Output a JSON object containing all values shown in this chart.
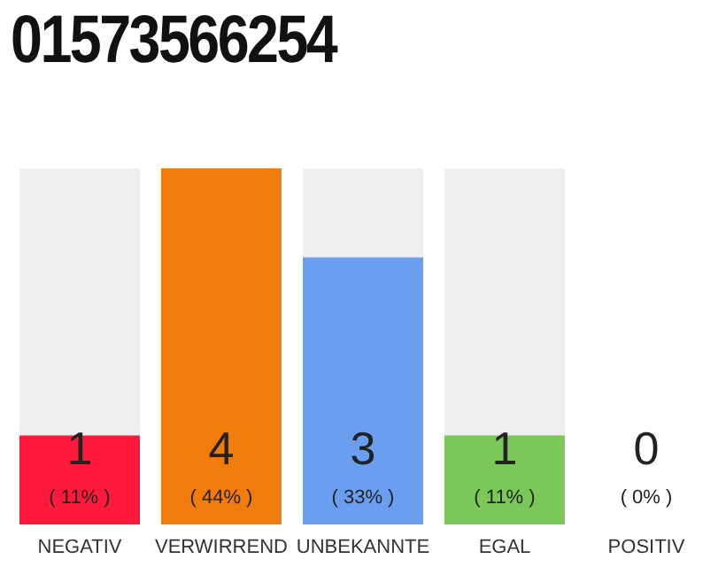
{
  "chart_data": {
    "type": "bar",
    "title": "01573566254",
    "categories": [
      "NEGATIV",
      "VERWIRREND",
      "UNBEKANNTE",
      "EGAL",
      "POSITIV"
    ],
    "values": [
      1,
      4,
      3,
      1,
      0
    ],
    "colors": [
      "#ff1a3c",
      "#f07c0b",
      "#6a9ff0",
      "#7ac85a",
      "#bdbdbd"
    ],
    "ylim": [
      0,
      4
    ],
    "tick_labels": "x",
    "data_labels": true,
    "grid": false,
    "legend": false,
    "annotations": [
      "( 11% )",
      "( 44% )",
      "( 33% )",
      "( 11% )",
      "( 0% )"
    ]
  }
}
